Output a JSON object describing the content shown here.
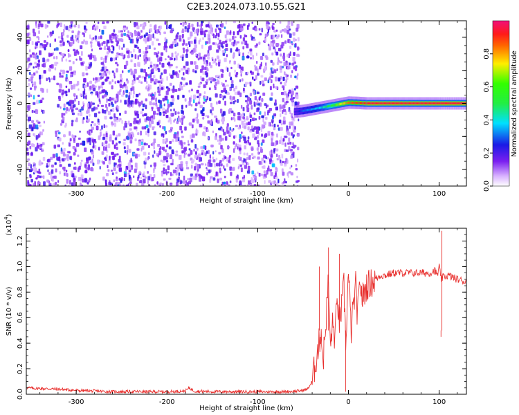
{
  "figure": {
    "title": "C2E3.2024.073.10.55.G21"
  },
  "chart_data": [
    {
      "type": "heatmap",
      "title": "",
      "xlabel": "Height of straight line (km)",
      "ylabel": "Frequency (Hz)",
      "xlim": [
        -355,
        130
      ],
      "ylim": [
        -50,
        50
      ],
      "x_ticks": [
        {
          "value": -300,
          "label": "-300"
        },
        {
          "value": -200,
          "label": "-200"
        },
        {
          "value": -100,
          "label": "-100"
        },
        {
          "value": 0,
          "label": "0"
        },
        {
          "value": 100,
          "label": "100"
        }
      ],
      "y_ticks": [
        {
          "value": -40,
          "label": "-40"
        },
        {
          "value": -20,
          "label": "-20"
        },
        {
          "value": 0,
          "label": "0"
        },
        {
          "value": 20,
          "label": "20"
        },
        {
          "value": 40,
          "label": "40"
        }
      ],
      "signal_track": {
        "x": [
          -60,
          -50,
          -40,
          -30,
          -20,
          -10,
          0,
          10,
          20,
          40,
          60,
          80,
          100,
          130
        ],
        "freq": [
          -5,
          -4.5,
          -3.5,
          -2.5,
          -1.5,
          -0.5,
          0.5,
          0.3,
          0,
          0,
          0,
          0,
          0,
          0
        ],
        "amplitude": [
          0.2,
          0.3,
          0.35,
          0.4,
          0.55,
          0.7,
          0.85,
          0.9,
          0.95,
          0.95,
          0.95,
          0.95,
          0.95,
          0.95
        ]
      },
      "noise_region_x": [
        -355,
        -55
      ],
      "colorbar": {
        "label": "Normalized spectral amplitude",
        "range": [
          0,
          1
        ],
        "ticks": [
          {
            "value": 0.0,
            "label": "0.0"
          },
          {
            "value": 0.2,
            "label": "0.2"
          },
          {
            "value": 0.4,
            "label": "0.4"
          },
          {
            "value": 0.6,
            "label": "0.6"
          },
          {
            "value": 0.8,
            "label": "0.8"
          }
        ]
      }
    },
    {
      "type": "line",
      "title": "",
      "xlabel": "Height of straight line (km)",
      "ylabel": "SNR (10 * v/v)",
      "y_multiplier": "(x10",
      "y_multiplier_exp": "4",
      "xlim": [
        -355,
        130
      ],
      "ylim": [
        0,
        1.3
      ],
      "x_ticks": [
        {
          "value": -300,
          "label": "-300"
        },
        {
          "value": -200,
          "label": "-200"
        },
        {
          "value": -100,
          "label": "-100"
        },
        {
          "value": 0,
          "label": "0"
        },
        {
          "value": 100,
          "label": "100"
        }
      ],
      "y_ticks": [
        {
          "value": 0.0,
          "label": "0.0"
        },
        {
          "value": 0.2,
          "label": "0.2"
        },
        {
          "value": 0.4,
          "label": "0.4"
        },
        {
          "value": 0.6,
          "label": "0.6"
        },
        {
          "value": 0.8,
          "label": "0.8"
        },
        {
          "value": 1.0,
          "label": "1.0"
        },
        {
          "value": 1.2,
          "label": "1.2"
        }
      ],
      "series": [
        {
          "color": "#e8302e",
          "x": [
            -355,
            -340,
            -320,
            -300,
            -280,
            -260,
            -240,
            -220,
            -200,
            -180,
            -175,
            -170,
            -150,
            -130,
            -110,
            -90,
            -70,
            -55,
            -45,
            -40,
            -35,
            -30,
            -28,
            -25,
            -22,
            -20,
            -18,
            -15,
            -12,
            -10,
            -8,
            -5,
            -3,
            0,
            3,
            5,
            8,
            10,
            13,
            15,
            18,
            20,
            25,
            30,
            35,
            40,
            50,
            60,
            70,
            80,
            90,
            95,
            98,
            100,
            102,
            105,
            110,
            120,
            130
          ],
          "y": [
            0.05,
            0.045,
            0.04,
            0.03,
            0.025,
            0.02,
            0.02,
            0.02,
            0.02,
            0.025,
            0.05,
            0.025,
            0.02,
            0.02,
            0.02,
            0.02,
            0.02,
            0.025,
            0.04,
            0.1,
            0.3,
            0.5,
            0.25,
            0.55,
            0.9,
            0.35,
            0.55,
            0.45,
            0.75,
            0.55,
            0.65,
            0.85,
            0.4,
            0.95,
            0.5,
            0.65,
            0.85,
            0.6,
            0.9,
            0.75,
            0.8,
            0.85,
            0.87,
            0.9,
            0.93,
            0.93,
            0.95,
            0.95,
            0.95,
            0.95,
            0.95,
            0.97,
            0.93,
            1.0,
            0.9,
            0.92,
            0.93,
            0.9,
            0.88
          ]
        }
      ]
    }
  ]
}
